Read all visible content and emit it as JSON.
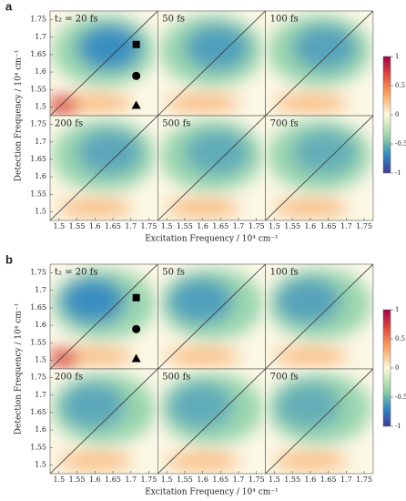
{
  "chart_data": [
    {
      "type": "contour",
      "label": "a",
      "panels": [
        "t₂ = 20 fs",
        "50 fs",
        "100 fs",
        "200 fs",
        "500 fs",
        "700 fs"
      ],
      "xlabel": "Excitation Frequency / 10⁴ cm⁻¹",
      "ylabel": "Detection Frequency / 10⁴ cm⁻¹",
      "xlim": [
        1.475,
        1.775
      ],
      "ylim": [
        1.475,
        1.775
      ],
      "xticks": [
        1.5,
        1.55,
        1.6,
        1.65,
        1.7,
        1.75
      ],
      "yticks": [
        1.5,
        1.55,
        1.6,
        1.65,
        1.7,
        1.75
      ],
      "clim": [
        -1,
        1
      ],
      "cticks": [
        1,
        0.5,
        0,
        -0.5,
        -1
      ]
    },
    {
      "type": "contour",
      "label": "b",
      "panels": [
        "t₂ = 20 fs",
        "50 fs",
        "100 fs",
        "200 fs",
        "500 fs",
        "700 fs"
      ],
      "xlabel": "Excitation Frequency / 10⁴ cm⁻¹",
      "ylabel": "Detection Frequency / 10⁴ cm⁻¹",
      "xlim": [
        1.475,
        1.775
      ],
      "ylim": [
        1.475,
        1.775
      ],
      "xticks": [
        1.5,
        1.55,
        1.6,
        1.65,
        1.7,
        1.75
      ],
      "yticks": [
        1.5,
        1.55,
        1.6,
        1.65,
        1.7,
        1.75
      ],
      "clim": [
        -1,
        1
      ],
      "cticks": [
        1,
        0.5,
        0,
        -0.5,
        -1
      ]
    }
  ]
}
